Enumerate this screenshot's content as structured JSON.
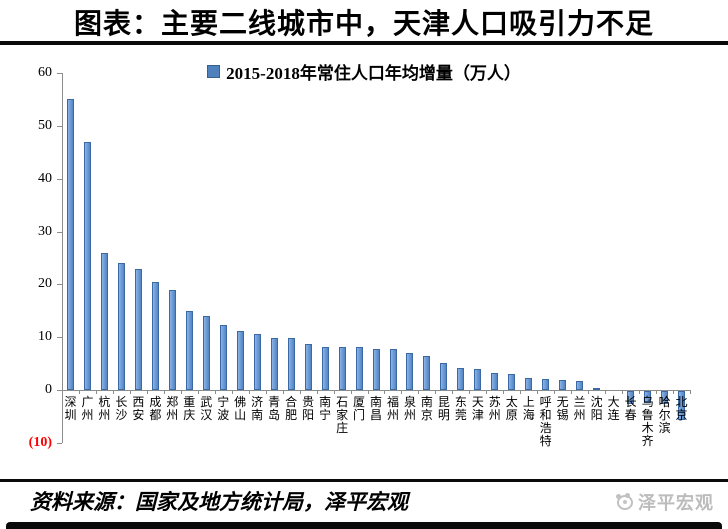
{
  "title": "图表：主要二线城市中，天津人口吸引力不足",
  "footer": {
    "source_text": "资料来源：国家及地方统计局，泽平宏观",
    "logo_text": "泽平宏观"
  },
  "chart_data": {
    "type": "bar",
    "legend": "2015-2018年常住人口年均增量（万人）",
    "legend_position": "top",
    "grid": false,
    "ylim": [
      -10,
      60
    ],
    "yticks": [
      60,
      50,
      40,
      30,
      20,
      10,
      0,
      -10
    ],
    "ytick_labels": [
      "60",
      "50",
      "40",
      "30",
      "20",
      "10",
      "0",
      "(10)"
    ],
    "negative_tick_color": "#ff0000",
    "bar_color": "#6d9eda",
    "bar_border_color": "#3a69a3",
    "categories": [
      "深圳",
      "广州",
      "杭州",
      "长沙",
      "西安",
      "成都",
      "郑州",
      "重庆",
      "武汉",
      "宁波",
      "佛山",
      "济南",
      "青岛",
      "合肥",
      "贵阳",
      "南宁",
      "石家庄",
      "厦门",
      "南昌",
      "福州",
      "泉州",
      "南京",
      "昆明",
      "东莞",
      "天津",
      "苏州",
      "太原",
      "上海",
      "呼和浩特",
      "无锡",
      "兰州",
      "沈阳",
      "大连",
      "长春",
      "乌鲁木齐",
      "哈尔滨",
      "北京"
    ],
    "values": [
      55,
      47,
      26,
      24,
      23,
      20.5,
      19,
      15,
      14,
      12.3,
      11.2,
      10.6,
      9.9,
      9.8,
      8.7,
      8.2,
      8.1,
      8.1,
      7.8,
      7.7,
      7,
      6.4,
      5.1,
      4.1,
      4,
      3.2,
      3.1,
      2.3,
      2,
      1.9,
      1.8,
      0.3,
      0,
      -2.5,
      -2.3,
      -2.5,
      -5.5
    ]
  }
}
